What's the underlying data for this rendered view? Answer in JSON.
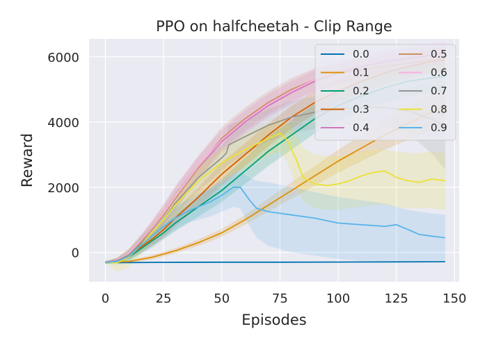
{
  "chart_data": {
    "type": "line",
    "title": "PPO on halfcheetah - Clip Range",
    "xlabel": "Episodes",
    "ylabel": "Reward",
    "xlim": [
      -7,
      152
    ],
    "ylim": [
      -900,
      6550
    ],
    "xticks": [
      0,
      25,
      50,
      75,
      100,
      125,
      150
    ],
    "yticks": [
      0,
      2000,
      4000,
      6000
    ],
    "grid": true,
    "legend_position": "top-right",
    "legend_columns": 2,
    "series": [
      {
        "name": "0.0",
        "color": "#0173b2",
        "x": [
          0,
          10,
          25,
          50,
          75,
          100,
          125,
          146
        ],
        "y": [
          -310,
          -310,
          -305,
          -300,
          -300,
          -295,
          -290,
          -285
        ],
        "lo": [
          -330,
          -330,
          -325,
          -320,
          -320,
          -315,
          -310,
          -305
        ],
        "hi": [
          -290,
          -290,
          -285,
          -280,
          -280,
          -275,
          -270,
          -265
        ]
      },
      {
        "name": "0.1",
        "color": "#de8f05",
        "x": [
          0,
          10,
          20,
          30,
          40,
          50,
          60,
          70,
          80,
          90,
          100,
          110,
          120,
          130,
          140,
          146
        ],
        "y": [
          -300,
          -280,
          -150,
          50,
          300,
          600,
          1000,
          1450,
          1900,
          2350,
          2800,
          3200,
          3600,
          3950,
          4300,
          4450
        ],
        "lo": [
          -330,
          -320,
          -220,
          -30,
          200,
          480,
          850,
          1250,
          1650,
          2050,
          2450,
          2800,
          3150,
          3450,
          3750,
          3850
        ],
        "hi": [
          -270,
          -240,
          -80,
          130,
          400,
          720,
          1150,
          1650,
          2150,
          2650,
          3150,
          3600,
          4050,
          4450,
          4850,
          5050
        ]
      },
      {
        "name": "0.2",
        "color": "#029e73",
        "x": [
          0,
          5,
          10,
          15,
          20,
          25,
          30,
          40,
          50,
          60,
          70,
          80,
          90,
          100,
          110,
          120,
          130,
          140,
          146
        ],
        "y": [
          -300,
          -280,
          -150,
          100,
          350,
          600,
          900,
          1400,
          1900,
          2500,
          3100,
          3600,
          4100,
          4500,
          4800,
          5050,
          5250,
          5350,
          5400
        ],
        "lo": [
          -330,
          -330,
          -250,
          -50,
          150,
          400,
          650,
          1100,
          1550,
          2100,
          2650,
          3150,
          3650,
          4050,
          4350,
          4600,
          4800,
          4900,
          4950
        ],
        "hi": [
          -270,
          -230,
          -50,
          250,
          550,
          800,
          1150,
          1700,
          2250,
          2900,
          3550,
          4050,
          4550,
          4950,
          5250,
          5500,
          5700,
          5800,
          5850
        ]
      },
      {
        "name": "0.3",
        "color": "#d55e00",
        "x": [
          0,
          5,
          10,
          15,
          20,
          25,
          30,
          40,
          50,
          60,
          70,
          80,
          90,
          100,
          110,
          120,
          130,
          140,
          146
        ],
        "y": [
          -300,
          -250,
          -100,
          150,
          400,
          700,
          1050,
          1700,
          2400,
          3000,
          3600,
          4150,
          4600,
          4950,
          5250,
          5500,
          5700,
          5850,
          5900
        ],
        "lo": [
          -330,
          -310,
          -200,
          0,
          200,
          450,
          800,
          1400,
          2050,
          2650,
          3250,
          3800,
          4250,
          4600,
          4900,
          5150,
          5350,
          5500,
          5550
        ],
        "hi": [
          -270,
          -190,
          0,
          300,
          600,
          950,
          1300,
          2000,
          2750,
          3350,
          3950,
          4500,
          4950,
          5300,
          5600,
          5850,
          6050,
          6200,
          6250
        ]
      },
      {
        "name": "0.4",
        "color": "#cc78bc",
        "x": [
          0,
          5,
          10,
          15,
          20,
          25,
          30,
          40,
          50,
          60,
          70,
          80,
          90,
          100,
          110,
          120,
          130,
          140,
          146
        ],
        "y": [
          -300,
          -230,
          -50,
          300,
          700,
          1150,
          1650,
          2600,
          3400,
          4000,
          4500,
          4900,
          5250,
          5500,
          5700,
          5850,
          5950,
          6050,
          6100
        ],
        "lo": [
          -330,
          -300,
          -200,
          100,
          450,
          850,
          1300,
          2250,
          3050,
          3650,
          4150,
          4550,
          4900,
          5200,
          5400,
          5550,
          5650,
          5750,
          5800
        ],
        "hi": [
          -270,
          -160,
          100,
          500,
          950,
          1450,
          2000,
          2950,
          3750,
          4350,
          4850,
          5250,
          5600,
          5800,
          6000,
          6150,
          6250,
          6350,
          6400
        ]
      },
      {
        "name": "0.5",
        "color": "#ca9161",
        "x": [
          0,
          5,
          10,
          15,
          20,
          25,
          30,
          40,
          50,
          60,
          70,
          80,
          90,
          100,
          110,
          120,
          130,
          140,
          146
        ],
        "y": [
          -300,
          -230,
          -50,
          300,
          700,
          1150,
          1650,
          2600,
          3500,
          4100,
          4600,
          5000,
          5300,
          5500,
          5600,
          5700,
          5800,
          5900,
          5950
        ],
        "lo": [
          -330,
          -300,
          -200,
          100,
          450,
          850,
          1300,
          2250,
          3150,
          3750,
          4250,
          4650,
          4950,
          5150,
          5250,
          5350,
          5450,
          5550,
          5600
        ],
        "hi": [
          -270,
          -160,
          100,
          500,
          950,
          1450,
          2000,
          2950,
          3850,
          4450,
          4950,
          5350,
          5650,
          5850,
          5950,
          6050,
          6150,
          6250,
          6300
        ]
      },
      {
        "name": "0.6",
        "color": "#fbafe4",
        "x": [
          0,
          5,
          10,
          15,
          20,
          25,
          30,
          40,
          50,
          60,
          70,
          80,
          90,
          100,
          110,
          120,
          130,
          140,
          146
        ],
        "y": [
          -300,
          -230,
          -30,
          350,
          750,
          1200,
          1700,
          2650,
          3450,
          4050,
          4550,
          4950,
          5300,
          5550,
          5750,
          5900,
          6000,
          6100,
          6150
        ],
        "lo": [
          -330,
          -300,
          -180,
          150,
          500,
          900,
          1350,
          2300,
          3100,
          3700,
          4200,
          4600,
          4950,
          5250,
          5450,
          5600,
          5700,
          5800,
          5850
        ],
        "hi": [
          -270,
          -160,
          120,
          550,
          1000,
          1500,
          2050,
          3000,
          3800,
          4400,
          4900,
          5300,
          5650,
          5850,
          6050,
          6200,
          6300,
          6400,
          6450
        ]
      },
      {
        "name": "0.7",
        "color": "#949494",
        "x": [
          0,
          5,
          10,
          15,
          20,
          25,
          30,
          40,
          50,
          52,
          53,
          60,
          70,
          80,
          90,
          100,
          110,
          120,
          130,
          140,
          146
        ],
        "y": [
          -300,
          -250,
          -80,
          250,
          600,
          1000,
          1500,
          2300,
          2900,
          3050,
          3300,
          3550,
          3900,
          4150,
          4300,
          4400,
          4450,
          4450,
          4350,
          4100,
          3850
        ],
        "lo": [
          -330,
          -310,
          -220,
          50,
          350,
          700,
          1150,
          1900,
          2500,
          2650,
          2700,
          3000,
          3400,
          3650,
          3800,
          3900,
          3950,
          3900,
          3650,
          3050,
          2550
        ],
        "hi": [
          -270,
          -190,
          60,
          450,
          850,
          1300,
          1850,
          2700,
          3300,
          3450,
          3900,
          4100,
          4400,
          4650,
          4800,
          4900,
          4950,
          5000,
          5050,
          5150,
          5150
        ]
      },
      {
        "name": "0.8",
        "color": "#ece133",
        "x": [
          0,
          5,
          10,
          15,
          20,
          25,
          30,
          40,
          50,
          60,
          70,
          75,
          78,
          82,
          85,
          90,
          95,
          100,
          105,
          110,
          115,
          120,
          125,
          130,
          135,
          140,
          146
        ],
        "y": [
          -300,
          -320,
          -150,
          200,
          600,
          1000,
          1450,
          2200,
          2750,
          3150,
          3500,
          3650,
          3450,
          2850,
          2300,
          2100,
          2050,
          2100,
          2200,
          2350,
          2450,
          2500,
          2300,
          2200,
          2150,
          2250,
          2200
        ],
        "lo": [
          -330,
          -600,
          -450,
          -100,
          300,
          650,
          1050,
          1750,
          2250,
          2600,
          2950,
          3100,
          2800,
          2000,
          1550,
          1350,
          1300,
          1300,
          1350,
          1400,
          1450,
          1450,
          1400,
          1350,
          1350,
          1350,
          1300
        ],
        "hi": [
          -270,
          -150,
          100,
          450,
          850,
          1300,
          1800,
          2600,
          3200,
          3650,
          3950,
          4100,
          4000,
          3600,
          3200,
          3000,
          2950,
          2950,
          3000,
          3100,
          3150,
          3150,
          3100,
          3050,
          3050,
          3100,
          3050
        ]
      },
      {
        "name": "0.9",
        "color": "#56b4e9",
        "x": [
          0,
          5,
          10,
          15,
          20,
          25,
          30,
          35,
          40,
          45,
          50,
          55,
          58,
          62,
          65,
          70,
          80,
          90,
          100,
          110,
          120,
          125,
          130,
          135,
          140,
          146
        ],
        "y": [
          -300,
          -280,
          -120,
          200,
          500,
          800,
          1050,
          1250,
          1400,
          1550,
          1750,
          2000,
          2000,
          1600,
          1350,
          1250,
          1150,
          1050,
          900,
          850,
          800,
          850,
          700,
          550,
          500,
          450
        ],
        "lo": [
          -330,
          -380,
          -300,
          -50,
          200,
          450,
          700,
          900,
          1000,
          1100,
          1250,
          1400,
          1350,
          800,
          450,
          200,
          0,
          -100,
          -200,
          -250,
          -250,
          -250,
          -250,
          -250,
          -250,
          -250
        ],
        "hi": [
          -270,
          -180,
          60,
          450,
          800,
          1150,
          1400,
          1600,
          1800,
          1950,
          2150,
          2350,
          2450,
          2300,
          2200,
          2150,
          2000,
          1850,
          1700,
          1600,
          1500,
          1400,
          1300,
          1250,
          1200,
          1150
        ]
      }
    ]
  }
}
